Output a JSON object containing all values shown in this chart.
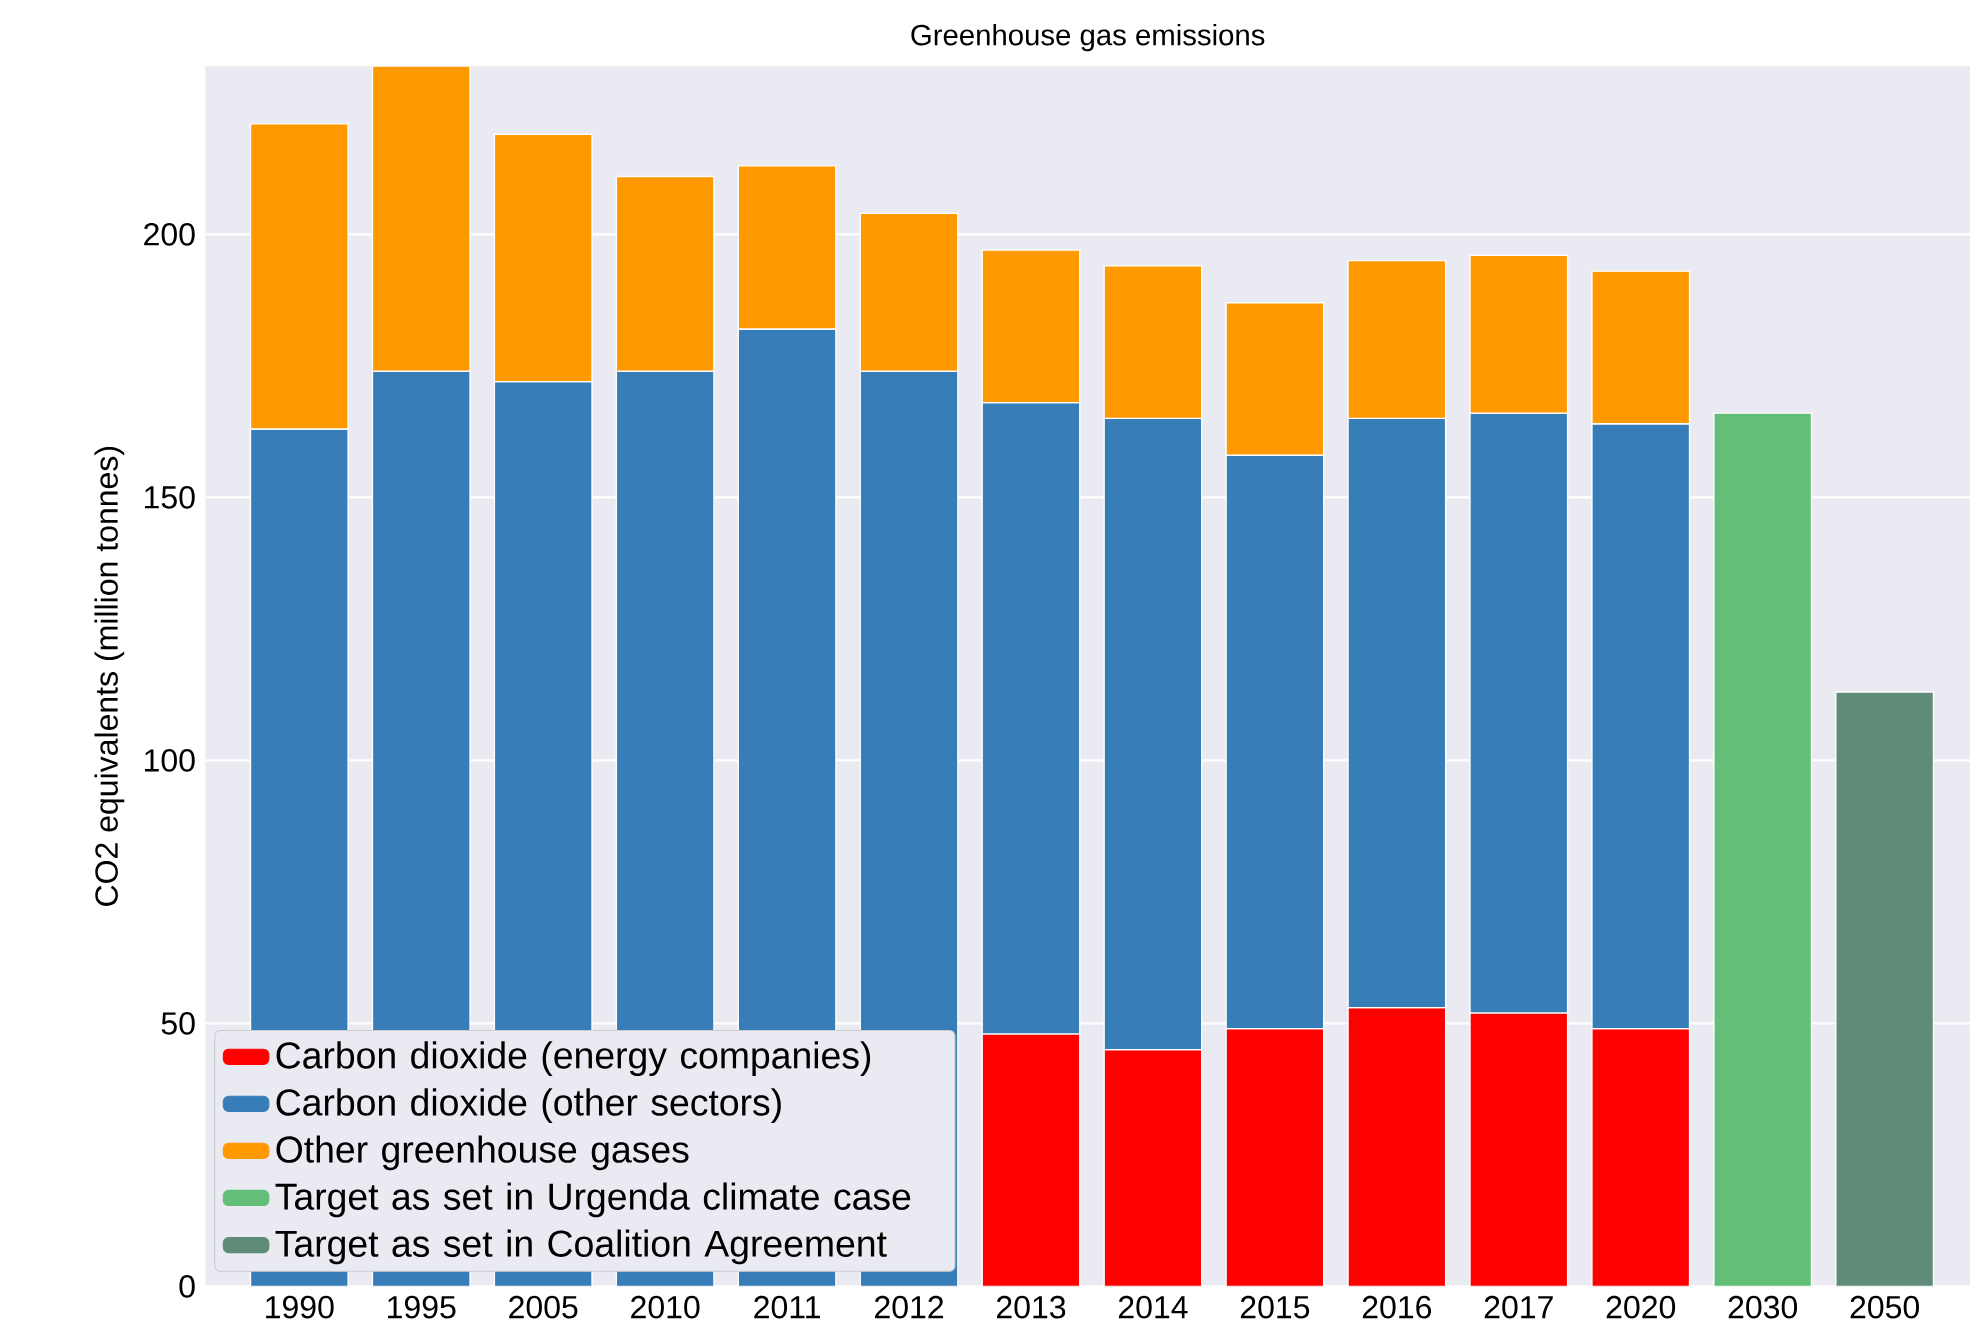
{
  "chart_data": {
    "type": "bar",
    "stacked": true,
    "title": "Greenhouse gas emissions",
    "ylabel": "CO2 equivalents (million tonnes)",
    "categories": [
      "1990",
      "1995",
      "2005",
      "2010",
      "2011",
      "2012",
      "2013",
      "2014",
      "2015",
      "2016",
      "2017",
      "2020",
      "2030",
      "2050"
    ],
    "series": [
      {
        "name": "Carbon dioxide (energy companies)",
        "color": "#ff0000",
        "values": [
          null,
          null,
          null,
          null,
          null,
          null,
          48,
          45,
          49,
          53,
          52,
          49,
          null,
          null
        ]
      },
      {
        "name": "Carbon dioxide (other sectors)",
        "color": "#377eb8",
        "values": [
          163,
          174,
          172,
          174,
          182,
          174,
          120,
          120,
          109,
          112,
          114,
          115,
          null,
          null
        ]
      },
      {
        "name": "Other greenhouse gases",
        "color": "#ff9900",
        "values": [
          58,
          58,
          47,
          37,
          31,
          30,
          29,
          29,
          29,
          30,
          30,
          29,
          null,
          null
        ]
      },
      {
        "name": "Target as set in Urgenda climate case",
        "color": "#63bf78",
        "values": [
          null,
          null,
          null,
          null,
          null,
          null,
          null,
          null,
          null,
          null,
          null,
          null,
          166,
          null
        ]
      },
      {
        "name": "Target as set in Coalition Agreement",
        "color": "#5f8c78",
        "values": [
          null,
          null,
          null,
          null,
          null,
          null,
          null,
          null,
          null,
          null,
          null,
          null,
          null,
          113
        ]
      }
    ],
    "ylim": [
      0,
      232
    ],
    "yticks": [
      0,
      50,
      100,
      150,
      200
    ],
    "grid": "y",
    "legend": "bottom left"
  }
}
